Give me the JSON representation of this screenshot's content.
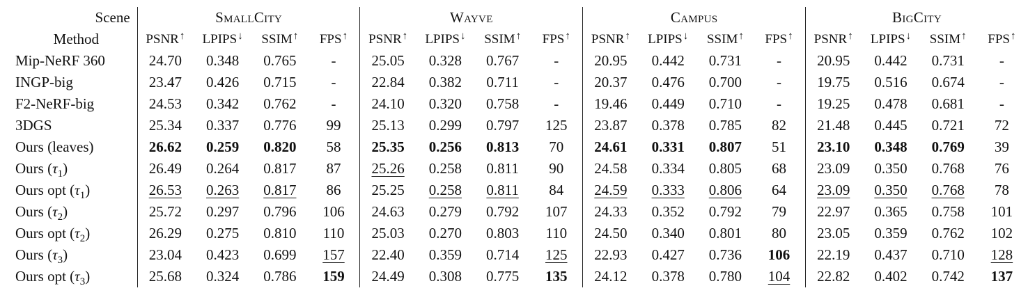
{
  "table": {
    "corner_top": "Scene",
    "corner_bottom": "Method",
    "scenes": [
      "SmallCity",
      "Wayve",
      "Campus",
      "BigCity"
    ],
    "metrics": [
      {
        "name": "PSNR",
        "arrow": "↑"
      },
      {
        "name": "LPIPS",
        "arrow": "↓"
      },
      {
        "name": "SSIM",
        "arrow": "↑"
      },
      {
        "name": "FPS",
        "arrow": "↑"
      }
    ],
    "rows": [
      {
        "method": "Mip-NeRF 360",
        "values": [
          "24.70",
          "0.348",
          "0.765",
          "-",
          "25.05",
          "0.328",
          "0.767",
          "-",
          "20.95",
          "0.442",
          "0.731",
          "-",
          "20.95",
          "0.442",
          "0.731",
          "-"
        ],
        "bold": [],
        "underline": []
      },
      {
        "method": "INGP-big",
        "values": [
          "23.47",
          "0.426",
          "0.715",
          "-",
          "22.84",
          "0.382",
          "0.711",
          "-",
          "20.37",
          "0.476",
          "0.700",
          "-",
          "19.75",
          "0.516",
          "0.674",
          "-"
        ],
        "bold": [],
        "underline": []
      },
      {
        "method": "F2-NeRF-big",
        "values": [
          "24.53",
          "0.342",
          "0.762",
          "-",
          "24.10",
          "0.320",
          "0.758",
          "-",
          "19.46",
          "0.449",
          "0.710",
          "-",
          "19.25",
          "0.478",
          "0.681",
          "-"
        ],
        "bold": [],
        "underline": []
      },
      {
        "method": "3DGS",
        "values": [
          "25.34",
          "0.337",
          "0.776",
          "99",
          "25.13",
          "0.299",
          "0.797",
          "125",
          "23.87",
          "0.378",
          "0.785",
          "82",
          "21.48",
          "0.445",
          "0.721",
          "72"
        ],
        "bold": [],
        "underline": []
      },
      {
        "method": "Ours (leaves)",
        "values": [
          "26.62",
          "0.259",
          "0.820",
          "58",
          "25.35",
          "0.256",
          "0.813",
          "70",
          "24.61",
          "0.331",
          "0.807",
          "51",
          "23.10",
          "0.348",
          "0.769",
          "39"
        ],
        "bold": [
          0,
          1,
          2,
          4,
          5,
          6,
          8,
          9,
          10,
          12,
          13,
          14
        ],
        "underline": []
      },
      {
        "method": "Ours (τ1)",
        "values": [
          "26.49",
          "0.264",
          "0.817",
          "87",
          "25.26",
          "0.258",
          "0.811",
          "90",
          "24.58",
          "0.334",
          "0.805",
          "68",
          "23.09",
          "0.350",
          "0.768",
          "76"
        ],
        "bold": [],
        "underline": [
          4
        ]
      },
      {
        "method": "Ours opt (τ1)",
        "values": [
          "26.53",
          "0.263",
          "0.817",
          "86",
          "25.25",
          "0.258",
          "0.811",
          "84",
          "24.59",
          "0.333",
          "0.806",
          "64",
          "23.09",
          "0.350",
          "0.768",
          "78"
        ],
        "bold": [],
        "underline": [
          0,
          1,
          2,
          5,
          6,
          8,
          9,
          10,
          12,
          13,
          14
        ]
      },
      {
        "method": "Ours (τ2)",
        "values": [
          "25.72",
          "0.297",
          "0.796",
          "106",
          "24.63",
          "0.279",
          "0.792",
          "107",
          "24.33",
          "0.352",
          "0.792",
          "79",
          "22.97",
          "0.365",
          "0.758",
          "101"
        ],
        "bold": [],
        "underline": []
      },
      {
        "method": "Ours opt (τ2)",
        "values": [
          "26.29",
          "0.275",
          "0.810",
          "110",
          "25.03",
          "0.270",
          "0.803",
          "110",
          "24.50",
          "0.340",
          "0.801",
          "80",
          "23.05",
          "0.359",
          "0.762",
          "102"
        ],
        "bold": [],
        "underline": []
      },
      {
        "method": "Ours (τ3)",
        "values": [
          "23.04",
          "0.423",
          "0.699",
          "157",
          "22.40",
          "0.359",
          "0.714",
          "125",
          "22.93",
          "0.427",
          "0.736",
          "106",
          "22.19",
          "0.437",
          "0.710",
          "128"
        ],
        "bold": [
          11
        ],
        "underline": [
          3,
          7,
          15
        ]
      },
      {
        "method": "Ours opt (τ3)",
        "values": [
          "25.68",
          "0.324",
          "0.786",
          "159",
          "24.49",
          "0.308",
          "0.775",
          "135",
          "24.12",
          "0.378",
          "0.780",
          "104",
          "22.82",
          "0.402",
          "0.742",
          "137"
        ],
        "bold": [
          3,
          7,
          15
        ],
        "underline": [
          11
        ]
      }
    ]
  }
}
